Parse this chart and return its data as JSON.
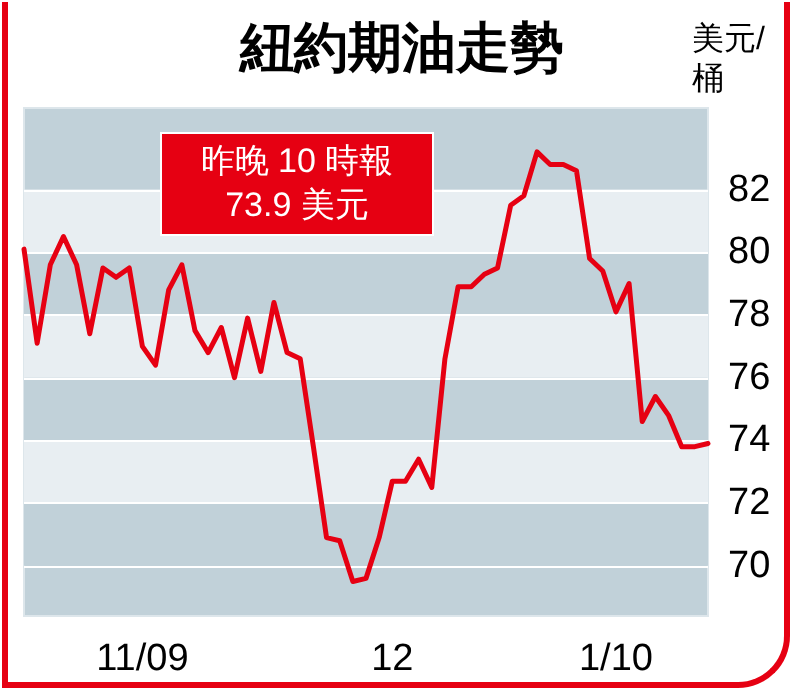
{
  "chart_data": {
    "type": "line",
    "title": "紐約期油走勢",
    "ylabel": "美元/\n桶",
    "annotations": [
      "昨晚 10 時報\n73.9 美元"
    ],
    "categories": [
      null,
      null,
      null,
      null,
      null,
      null,
      null,
      null,
      null,
      "11/09",
      null,
      null,
      null,
      null,
      null,
      null,
      null,
      null,
      null,
      null,
      null,
      null,
      null,
      null,
      null,
      null,
      null,
      null,
      "12",
      null,
      null,
      null,
      null,
      null,
      null,
      null,
      null,
      null,
      null,
      null,
      null,
      null,
      null,
      null,
      null,
      "1/10",
      null,
      null,
      null,
      null,
      null,
      null,
      null
    ],
    "series": [
      {
        "color": "#e60012",
        "values": [
          80.1,
          77.1,
          79.6,
          80.5,
          79.6,
          77.4,
          79.5,
          79.2,
          79.5,
          77.0,
          76.4,
          78.8,
          79.6,
          77.5,
          76.8,
          77.6,
          76.0,
          77.9,
          76.2,
          78.4,
          76.8,
          76.6,
          73.8,
          70.9,
          70.8,
          69.5,
          69.6,
          70.9,
          72.7,
          72.7,
          73.4,
          72.5,
          76.6,
          78.9,
          78.9,
          79.3,
          79.5,
          81.5,
          81.8,
          83.2,
          82.8,
          82.8,
          82.6,
          79.8,
          79.4,
          78.1,
          79.0,
          74.6,
          75.4,
          74.8,
          73.8,
          73.8,
          73.9
        ]
      }
    ],
    "ylim": [
      68.4,
      84.6
    ],
    "yticks": [
      70,
      72,
      74,
      76,
      78,
      80,
      82
    ],
    "grid": "y",
    "marker": "none",
    "line_style": "solid"
  }
}
